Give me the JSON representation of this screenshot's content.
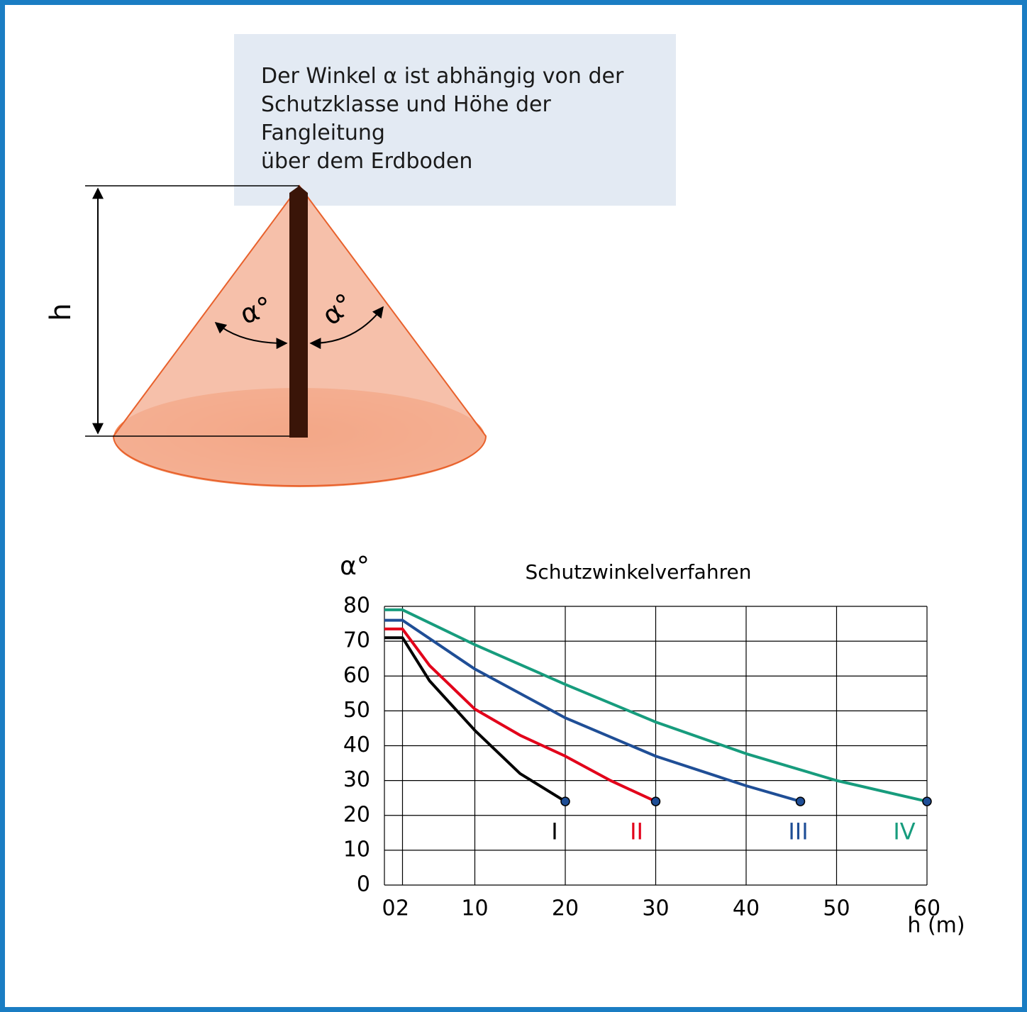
{
  "diagram": {
    "description": [
      "Der Winkel α ist abhängig von der",
      "Schutzklasse und Höhe der Fangleitung",
      "über dem Erdboden"
    ],
    "height_label": "h",
    "angle_label_left": "α°",
    "angle_label_right": "α°"
  },
  "chart_data": {
    "type": "line",
    "title": "Schutzwinkelverfahren",
    "y_label": "α°",
    "x_label": "h (m)",
    "xlim": [
      0,
      60
    ],
    "ylim": [
      0,
      80
    ],
    "xticks": [
      0,
      2,
      10,
      20,
      30,
      40,
      50,
      60
    ],
    "yticks": [
      0,
      10,
      20,
      30,
      40,
      50,
      60,
      70,
      80
    ],
    "grid": true,
    "series": [
      {
        "name": "I",
        "color": "#000000",
        "x": [
          0,
          2,
          5,
          10,
          15,
          20
        ],
        "values": [
          71,
          71,
          58.6,
          44.4,
          32,
          24
        ]
      },
      {
        "name": "II",
        "color": "#e2001a",
        "x": [
          0,
          2,
          5,
          10,
          15,
          20,
          25,
          30
        ],
        "values": [
          73.5,
          73.5,
          63,
          50.5,
          43,
          37,
          30,
          24
        ]
      },
      {
        "name": "III",
        "color": "#1f4e96",
        "x": [
          0,
          2,
          10,
          20,
          30,
          40,
          46
        ],
        "values": [
          76,
          76,
          62,
          48,
          37,
          28.5,
          24
        ]
      },
      {
        "name": "IV",
        "color": "#179c7d",
        "x": [
          0,
          2,
          10,
          20,
          30,
          40,
          50,
          60
        ],
        "values": [
          79,
          79,
          69,
          57.6,
          46.8,
          37.7,
          30,
          24
        ]
      }
    ]
  }
}
